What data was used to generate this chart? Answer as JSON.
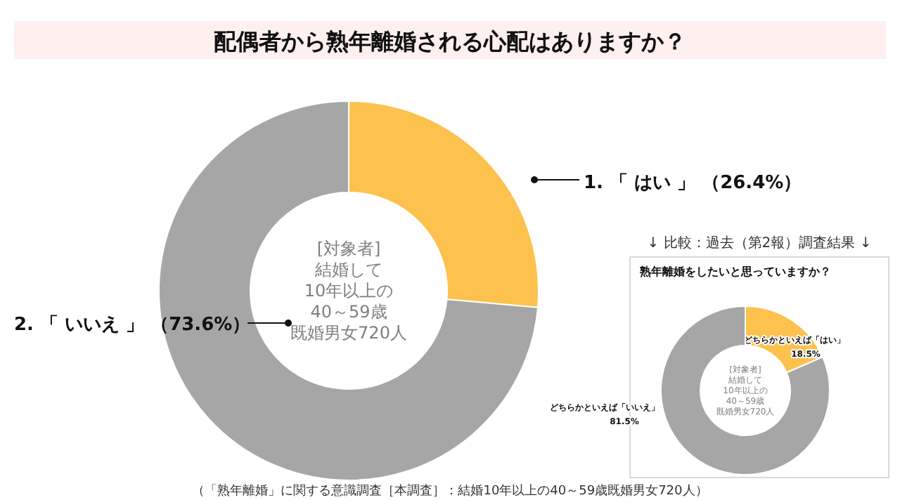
{
  "chart_data": [
    {
      "type": "donut",
      "title": "配偶者から熟年離婚される心配はありますか？",
      "categories": [
        "1. 「 はい 」",
        "2. 「 いいえ 」"
      ],
      "values": [
        26.4,
        73.6
      ],
      "value_labels": [
        "（26.4%）",
        "（73.6%）"
      ],
      "colors": [
        "#fdc24e",
        "#a6a6a6"
      ],
      "annotations": [
        "[対象者]",
        "結婚して",
        "10年以上の",
        "40～59歳",
        "既婚男女720人",
        "（「熟年離婚」に関する意識調査［本調査］：結婚10年以上の40～59歳既婚男女720人）"
      ]
    },
    {
      "type": "donut",
      "subtitle": "↓ 比較：過去（第2報）調査結果 ↓",
      "title": "熟年離婚をしたいと思っていますか？",
      "categories": [
        "どちらかといえば「はい」",
        "どちらかといえば「いいえ」"
      ],
      "values": [
        18.5,
        81.5
      ],
      "value_labels": [
        "18.5%",
        "81.5%"
      ],
      "colors": [
        "#fdc24e",
        "#a6a6a6"
      ],
      "annotations": [
        "[対象者]",
        "結婚して",
        "10年以上の",
        "40～59歳",
        "既婚男女720人"
      ]
    }
  ]
}
